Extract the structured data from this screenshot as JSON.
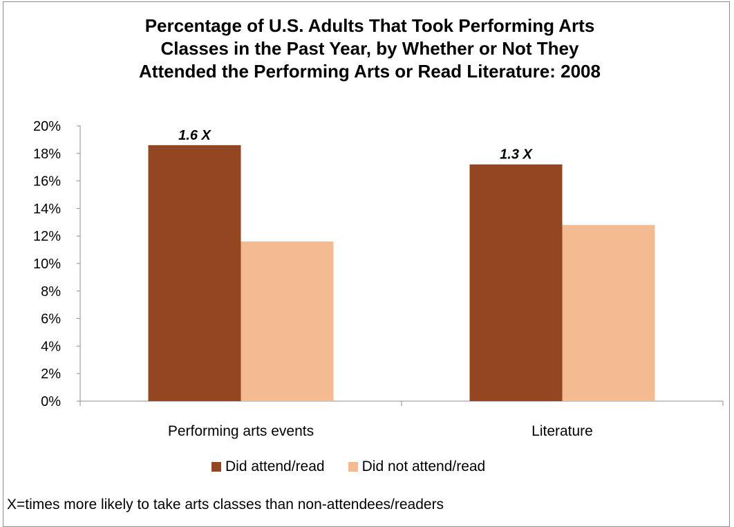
{
  "title_lines": [
    "Percentage of U.S. Adults That Took Performing Arts",
    "Classes in the Past Year, by Whether or Not They",
    "Attended the Performing Arts or Read Literature: 2008"
  ],
  "footnote": "X=times more likely to take arts classes than non-attendees/readers",
  "colors": {
    "did": "#934620",
    "did_not": "#f4bb93",
    "axis": "#8c8c8c"
  },
  "chart_data": {
    "type": "bar",
    "title": "Percentage of U.S. Adults That Took Performing Arts Classes in the Past Year, by Whether or Not They Attended the Performing Arts or Read Literature: 2008",
    "categories": [
      "Performing arts events",
      "Literature"
    ],
    "series": [
      {
        "name": "Did attend/read",
        "values": [
          18.6,
          17.2
        ]
      },
      {
        "name": "Did not attend/read",
        "values": [
          11.6,
          12.8
        ]
      }
    ],
    "annotations": [
      "1.6 X",
      "1.3 X"
    ],
    "ylim": [
      0,
      20
    ],
    "yticks": [
      "0%",
      "2%",
      "4%",
      "6%",
      "8%",
      "10%",
      "12%",
      "14%",
      "16%",
      "18%",
      "20%"
    ],
    "grid": false,
    "legend_position": "bottom"
  }
}
